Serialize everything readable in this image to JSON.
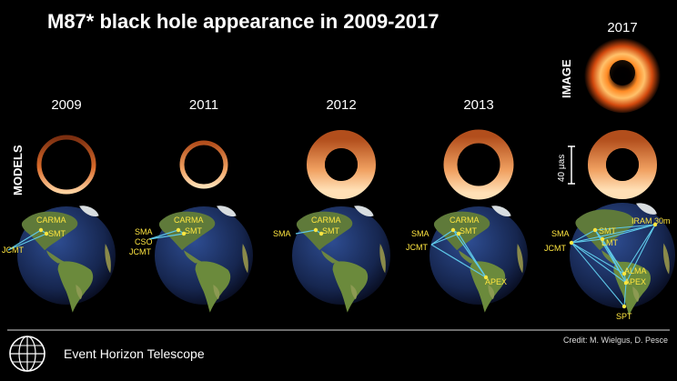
{
  "title": "M87* black hole appearance in 2009-2017",
  "labels": {
    "models": "MODELS",
    "image": "IMAGE",
    "scale": "40 μas"
  },
  "years": [
    "2009",
    "2011",
    "2012",
    "2013",
    "2017"
  ],
  "globes": [
    {
      "year": "2009",
      "stations": [
        "CARMA",
        "SMT",
        "JCMT"
      ]
    },
    {
      "year": "2011",
      "stations": [
        "SMA",
        "CSO",
        "JCMT",
        "CARMA",
        "SMT"
      ]
    },
    {
      "year": "2012",
      "stations": [
        "SMA",
        "CARMA",
        "SMT"
      ]
    },
    {
      "year": "2013",
      "stations": [
        "SMA",
        "JCMT",
        "CARMA",
        "SMT",
        "APEX"
      ]
    },
    {
      "year": "2017",
      "stations": [
        "SMA",
        "JCMT",
        "SMT",
        "LMT",
        "IRAM 30m",
        "ALMA",
        "APEX",
        "SPT"
      ]
    }
  ],
  "footer": {
    "credit": "Credit: M. Wielgus, D. Pesce",
    "org": "Event Horizon Telescope"
  }
}
